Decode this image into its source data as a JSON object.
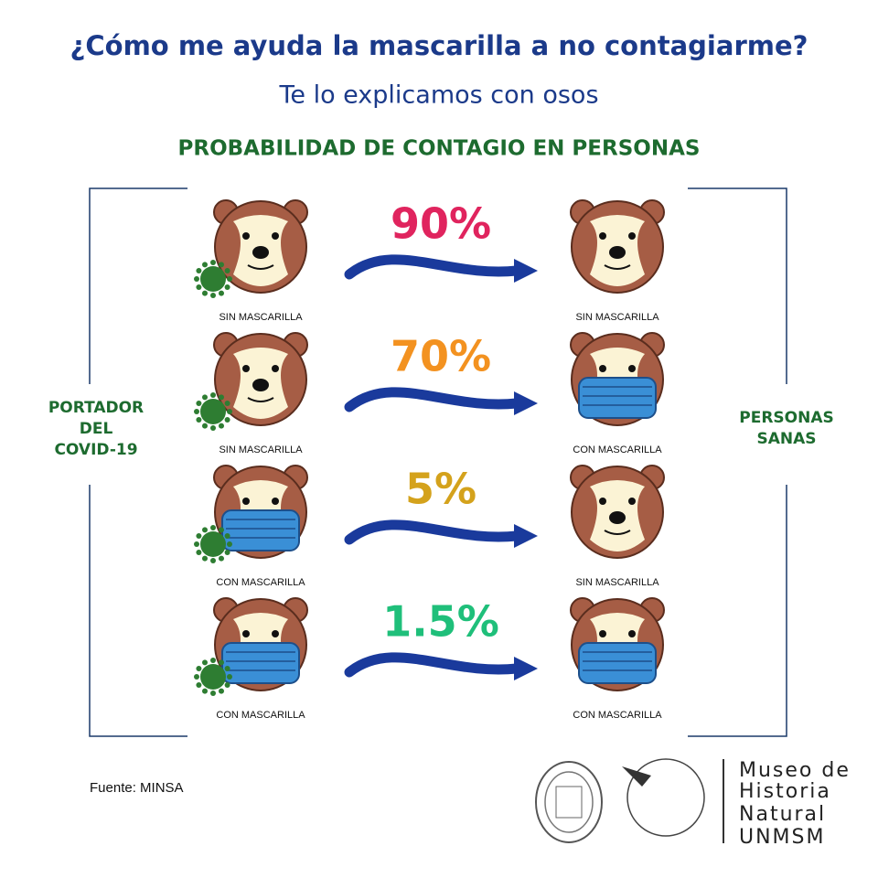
{
  "title": "¿Cómo me ayuda la mascarilla a no contagiarme?",
  "subtitle": "Te lo explicamos con osos",
  "heading": "PROBABILIDAD DE CONTAGIO EN PERSONAS",
  "left_group": [
    "PORTADOR",
    "DEL",
    "COVID-19"
  ],
  "right_group": [
    "PERSONAS",
    "SANAS"
  ],
  "rows": [
    {
      "probability": "90%",
      "color": "#e0245e",
      "carrier": {
        "label": "SIN MASCARILLA",
        "mask": false
      },
      "healthy": {
        "label": "SIN MASCARILLA",
        "mask": false
      }
    },
    {
      "probability": "70%",
      "color": "#f39220",
      "carrier": {
        "label": "SIN MASCARILLA",
        "mask": false
      },
      "healthy": {
        "label": "CON MASCARILLA",
        "mask": true
      }
    },
    {
      "probability": "5%",
      "color": "#d4a21c",
      "carrier": {
        "label": "CON MASCARILLA",
        "mask": true
      },
      "healthy": {
        "label": "SIN MASCARILLA",
        "mask": false
      }
    },
    {
      "probability": "1.5%",
      "color": "#1fbf7a",
      "carrier": {
        "label": "CON MASCARILLA",
        "mask": true
      },
      "healthy": {
        "label": "CON MASCARILLA",
        "mask": true
      }
    }
  ],
  "source": "Fuente: MINSA",
  "museum": [
    "Museo de",
    "Historia",
    "Natural",
    "UNMSM"
  ]
}
